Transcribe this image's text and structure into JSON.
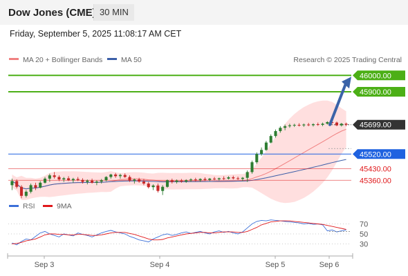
{
  "header": {
    "title": "Dow Jones (CME)",
    "timeframe": "30 MIN",
    "datetime": "Friday, September 5, 2025 11:08:17 AM CET"
  },
  "legend": {
    "ma20_label": "MA 20 + Bollinger Bands",
    "ma50_label": "MA 50",
    "credit": "Research © 2025 Trading Central"
  },
  "rsi_legend": {
    "rsi_label": "RSI",
    "ma9_label": "9MA"
  },
  "colors": {
    "green": "#4caf16",
    "blue": "#1f62e0",
    "red": "#e0181b",
    "dark": "#333333",
    "band": "#ffd9d9",
    "ma20": "#f08080",
    "ma50": "#3b5ea8",
    "arrow": "#3b63a8",
    "candle_up": "#2e7d32",
    "candle_down": "#c62828"
  },
  "chart_data": [
    {
      "type": "candlestick",
      "y_range": [
        45260,
        46060
      ],
      "x_ticks": [
        "Sep 3",
        "Sep 4",
        "Sep 5",
        "Sep 6"
      ],
      "levels": [
        {
          "value": 46000.0,
          "label": "46000.00",
          "style": "green-box",
          "line": "green"
        },
        {
          "value": 45900.0,
          "label": "45900.00",
          "style": "green-box",
          "line": "green"
        },
        {
          "value": 45699.0,
          "label": "45699.00",
          "style": "dark-box",
          "line": "dotted"
        },
        {
          "value": 45520.0,
          "label": "45520.00",
          "style": "blue-box",
          "line": "blue"
        },
        {
          "value": 45430.0,
          "label": "45430.00",
          "style": "red-text",
          "line": "red"
        },
        {
          "value": 45360.0,
          "label": "45360.00",
          "style": "red-text",
          "line": "red"
        }
      ],
      "series": [
        {
          "name": "MA 20 + Bollinger Bands"
        },
        {
          "name": "MA 50"
        }
      ],
      "candles": [
        [
          45330,
          45370,
          45300,
          45355
        ],
        [
          45355,
          45365,
          45310,
          45320
        ],
        [
          45320,
          45330,
          45250,
          45265
        ],
        [
          45265,
          45300,
          45255,
          45290
        ],
        [
          45290,
          45340,
          45280,
          45330
        ],
        [
          45330,
          45345,
          45300,
          45315
        ],
        [
          45315,
          45355,
          45310,
          45345
        ],
        [
          45345,
          45380,
          45340,
          45370
        ],
        [
          45370,
          45400,
          45350,
          45390
        ],
        [
          45390,
          45410,
          45370,
          45380
        ],
        [
          45380,
          45390,
          45355,
          45365
        ],
        [
          45365,
          45380,
          45350,
          45372
        ],
        [
          45372,
          45385,
          45355,
          45360
        ],
        [
          45360,
          45375,
          45345,
          45368
        ],
        [
          45368,
          45380,
          45355,
          45362
        ],
        [
          45362,
          45372,
          45340,
          45350
        ],
        [
          45350,
          45365,
          45335,
          45358
        ],
        [
          45358,
          45370,
          45340,
          45345
        ],
        [
          45345,
          45360,
          45330,
          45352
        ],
        [
          45352,
          45368,
          45340,
          45360
        ],
        [
          45360,
          45385,
          45355,
          45380
        ],
        [
          45380,
          45400,
          45370,
          45395
        ],
        [
          45395,
          45405,
          45375,
          45385
        ],
        [
          45385,
          45400,
          45370,
          45392
        ],
        [
          45392,
          45402,
          45375,
          45380
        ],
        [
          45380,
          45390,
          45350,
          45358
        ],
        [
          45358,
          45370,
          45340,
          45365
        ],
        [
          45365,
          45375,
          45345,
          45352
        ],
        [
          45352,
          45368,
          45330,
          45340
        ],
        [
          45340,
          45350,
          45310,
          45318
        ],
        [
          45318,
          45335,
          45300,
          45328
        ],
        [
          45328,
          45340,
          45285,
          45295
        ],
        [
          45295,
          45330,
          45270,
          45320
        ],
        [
          45320,
          45365,
          45315,
          45360
        ],
        [
          45360,
          45370,
          45340,
          45350
        ],
        [
          45350,
          45365,
          45340,
          45358
        ],
        [
          45358,
          45368,
          45345,
          45352
        ],
        [
          45352,
          45366,
          45344,
          45360
        ],
        [
          45360,
          45372,
          45350,
          45365
        ],
        [
          45365,
          45375,
          45352,
          45360
        ],
        [
          45360,
          45372,
          45350,
          45368
        ],
        [
          45368,
          45378,
          45356,
          45362
        ],
        [
          45362,
          45374,
          45355,
          45370
        ],
        [
          45370,
          45380,
          45360,
          45366
        ],
        [
          45366,
          45376,
          45358,
          45372
        ],
        [
          45372,
          45384,
          45362,
          45370
        ],
        [
          45370,
          45385,
          45365,
          45378
        ],
        [
          45378,
          45388,
          45365,
          45372
        ],
        [
          45372,
          45382,
          45362,
          45368
        ],
        [
          45368,
          45380,
          45355,
          45375
        ],
        [
          45375,
          45420,
          45350,
          45410
        ],
        [
          45410,
          45480,
          45400,
          45470
        ],
        [
          45470,
          45530,
          45460,
          45520
        ],
        [
          45520,
          45560,
          45510,
          45545
        ],
        [
          45545,
          45600,
          45540,
          45590
        ],
        [
          45590,
          45640,
          45585,
          45630
        ],
        [
          45630,
          45670,
          45620,
          45660
        ],
        [
          45660,
          45690,
          45650,
          45680
        ],
        [
          45680,
          45700,
          45665,
          45690
        ],
        [
          45690,
          45705,
          45680,
          45695
        ],
        [
          45695,
          45705,
          45685,
          45698
        ],
        [
          45698,
          45708,
          45688,
          45695
        ],
        [
          45695,
          45706,
          45686,
          45700
        ],
        [
          45700,
          45710,
          45690,
          45696
        ],
        [
          45696,
          45708,
          45688,
          45702
        ],
        [
          45702,
          45712,
          45692,
          45698
        ],
        [
          45698,
          45712,
          45690,
          45705
        ],
        [
          45705,
          45720,
          45700,
          45715
        ],
        [
          45715,
          45730,
          45705,
          45712
        ],
        [
          45712,
          45718,
          45690,
          45695
        ],
        [
          45695,
          45710,
          45688,
          45705
        ],
        [
          45705,
          45712,
          45690,
          45699
        ]
      ]
    },
    {
      "type": "line",
      "y_range": [
        10,
        90
      ],
      "y_ticks": [
        30,
        50,
        70
      ],
      "series": [
        {
          "name": "RSI",
          "values": [
            32,
            28,
            35,
            40,
            38,
            45,
            52,
            55,
            50,
            47,
            44,
            50,
            48,
            46,
            52,
            49,
            47,
            44,
            48,
            52,
            55,
            57,
            54,
            52,
            50,
            45,
            42,
            38,
            36,
            34,
            40,
            44,
            48,
            50,
            47,
            49,
            52,
            54,
            51,
            53,
            55,
            52,
            50,
            54,
            56,
            53,
            55,
            52,
            50,
            54,
            62,
            70,
            75,
            77,
            76,
            78,
            77,
            76,
            75,
            74,
            73,
            72,
            70,
            71,
            69,
            70,
            68,
            56,
            58,
            54,
            56,
            58
          ]
        },
        {
          "name": "9MA",
          "values": [
            30,
            31,
            33,
            36,
            38,
            40,
            44,
            48,
            50,
            50,
            49,
            49,
            48,
            48,
            49,
            49,
            48,
            47,
            47,
            48,
            50,
            52,
            53,
            53,
            53,
            51,
            49,
            46,
            43,
            40,
            38,
            38,
            39,
            42,
            44,
            46,
            48,
            50,
            51,
            52,
            53,
            53,
            52,
            52,
            53,
            54,
            54,
            54,
            53,
            53,
            55,
            59,
            63,
            68,
            71,
            74,
            75,
            76,
            76,
            76,
            75,
            74,
            73,
            72,
            71,
            70,
            69,
            67,
            65,
            63,
            61,
            59
          ]
        }
      ]
    }
  ]
}
